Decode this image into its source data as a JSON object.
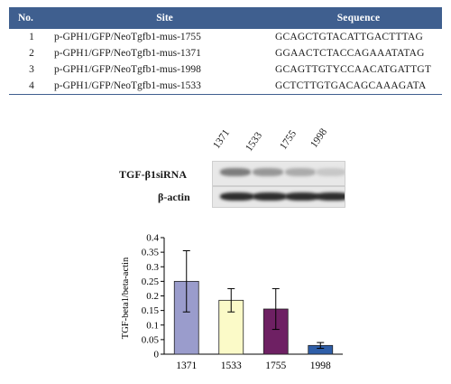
{
  "table": {
    "headers": {
      "no": "No.",
      "site": "Site",
      "sequence": "Sequence"
    },
    "rows": [
      {
        "no": "1",
        "site": "p-GPH1/GFP/NeoTgfb1-mus-1755",
        "sequence": "GCAGCTGTACATTGACTTTAG"
      },
      {
        "no": "2",
        "site": "p-GPH1/GFP/NeoTgfb1-mus-1371",
        "sequence": "GGAACTCTACCAGAAATATAG"
      },
      {
        "no": "3",
        "site": "p-GPH1/GFP/NeoTgfb1-mus-1998",
        "sequence": "GCAGTTGTYCCAACATGATTGT"
      },
      {
        "no": "4",
        "site": "p-GPH1/GFP/NeoTgfb1-mus-1533",
        "sequence": "GCTCTTGTGACAGCAAAGATA"
      }
    ],
    "header_color": "#3f5f8f"
  },
  "blot": {
    "lanes": [
      "1371",
      "1533",
      "1755",
      "1998"
    ],
    "rows": [
      {
        "label": "TGF-β1siRNA",
        "intensity": [
          0.55,
          0.42,
          0.32,
          0.18
        ]
      },
      {
        "label": "β-actin",
        "intensity": [
          0.95,
          0.95,
          0.95,
          0.95
        ]
      }
    ]
  },
  "chart_data": {
    "type": "bar",
    "categories": [
      "1371",
      "1533",
      "1755",
      "1998"
    ],
    "values": [
      0.25,
      0.185,
      0.155,
      0.03
    ],
    "errors": [
      0.105,
      0.04,
      0.07,
      0.01
    ],
    "colors": [
      "#9a9ccc",
      "#fbfac8",
      "#6e2063",
      "#2e5ea8"
    ],
    "ylabel": "TGF-beta1/beta-actin",
    "xlabel": "",
    "ylim": [
      0,
      0.4
    ],
    "yticks": [
      "0",
      "0.05",
      "0.1",
      "0.15",
      "0.2",
      "0.25",
      "0.3",
      "0.35",
      "0.4"
    ],
    "grid": false
  }
}
